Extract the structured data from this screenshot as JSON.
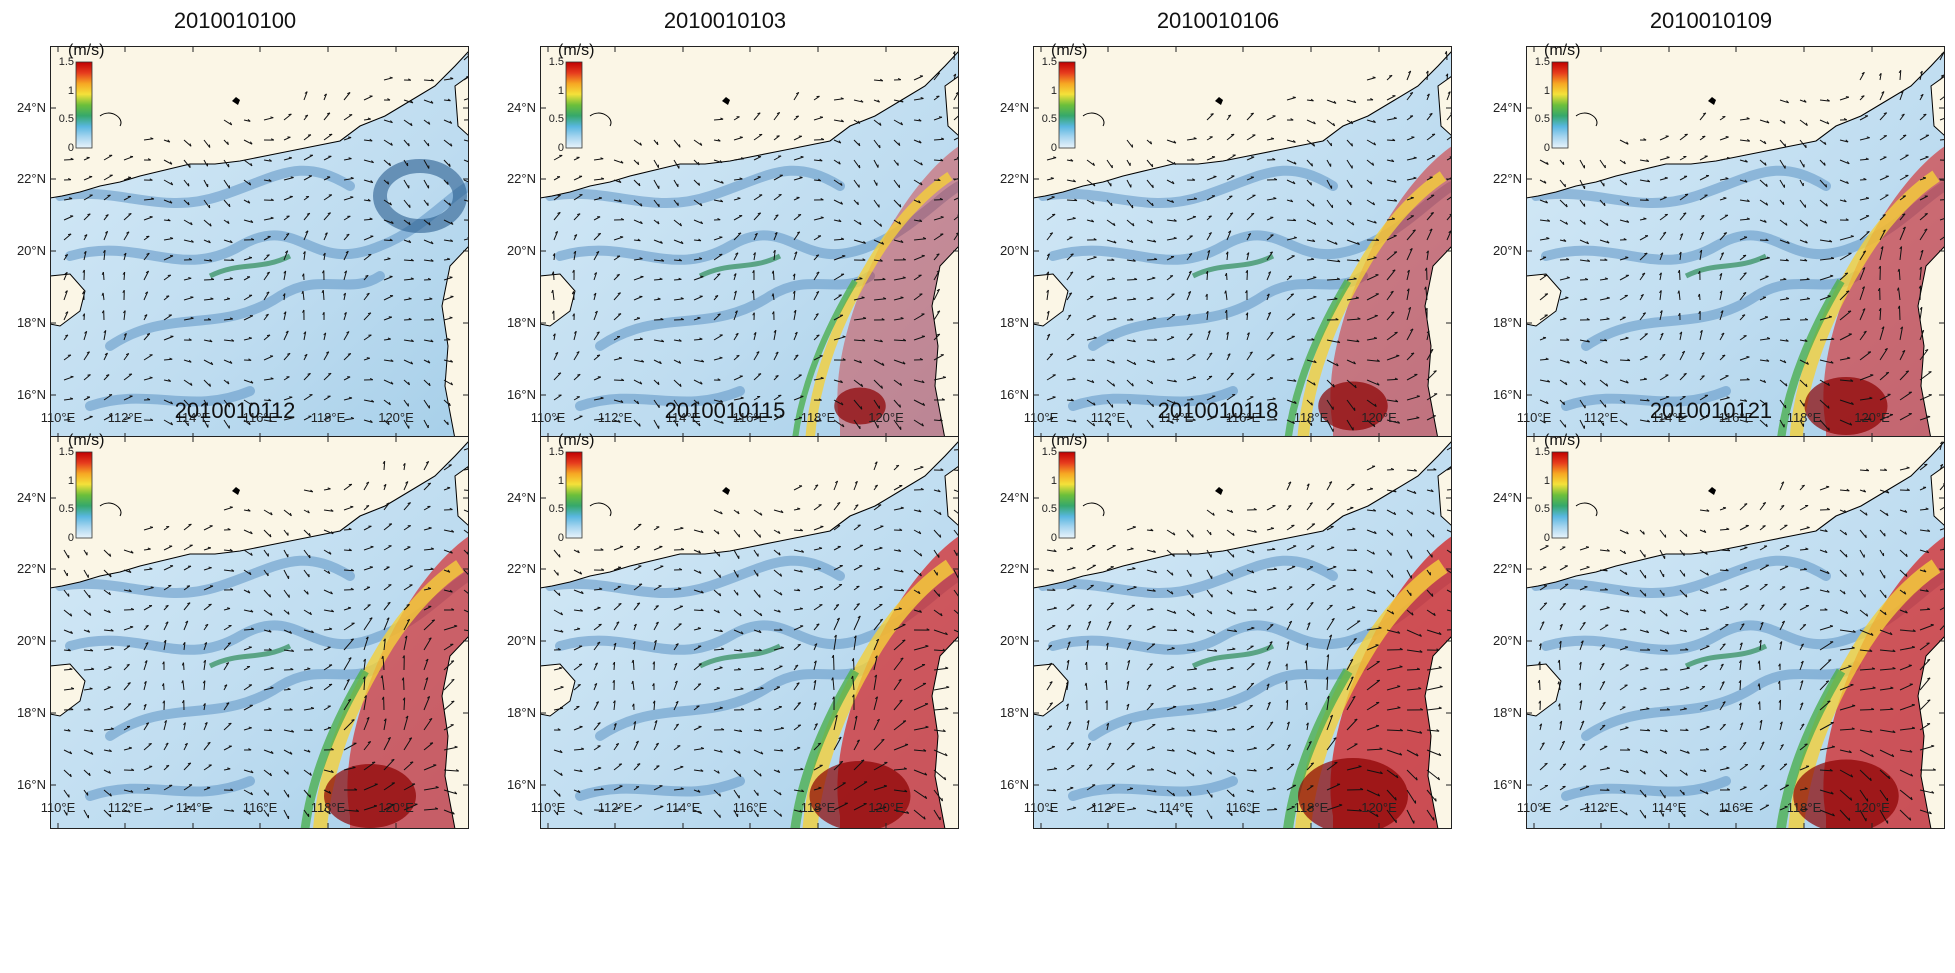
{
  "panels": [
    {
      "title": "2010010100",
      "kuroshio_intensity": 0.0
    },
    {
      "title": "2010010103",
      "kuroshio_intensity": 0.35
    },
    {
      "title": "2010010106",
      "kuroshio_intensity": 0.55
    },
    {
      "title": "2010010109",
      "kuroshio_intensity": 0.7
    },
    {
      "title": "2010010112",
      "kuroshio_intensity": 0.8
    },
    {
      "title": "2010010115",
      "kuroshio_intensity": 0.9
    },
    {
      "title": "2010010118",
      "kuroshio_intensity": 1.0
    },
    {
      "title": "2010010121",
      "kuroshio_intensity": 0.95
    }
  ],
  "lat_labels": [
    "24°N",
    "22°N",
    "20°N",
    "18°N",
    "16°N"
  ],
  "lon_labels": [
    "110°E",
    "112°E",
    "114°E",
    "116°E",
    "118°E",
    "120°E"
  ],
  "colorbar": {
    "title": "(m/s)",
    "ticks": [
      "1.5",
      "1",
      "0.5",
      "0"
    ],
    "colors": [
      "#c00000",
      "#e63b1e",
      "#f6a623",
      "#f4e13a",
      "#6dbf3a",
      "#36a86b",
      "#59b7e0",
      "#a9d6f0",
      "#e8f4fb"
    ]
  },
  "colors": {
    "land": "#fbf6e6",
    "coast": "#000000",
    "ocean_low": "#eef7fc",
    "ocean_mid": "#8cc2e6",
    "ocean_high": "#2a5d8f",
    "arrow": "#111111"
  }
}
